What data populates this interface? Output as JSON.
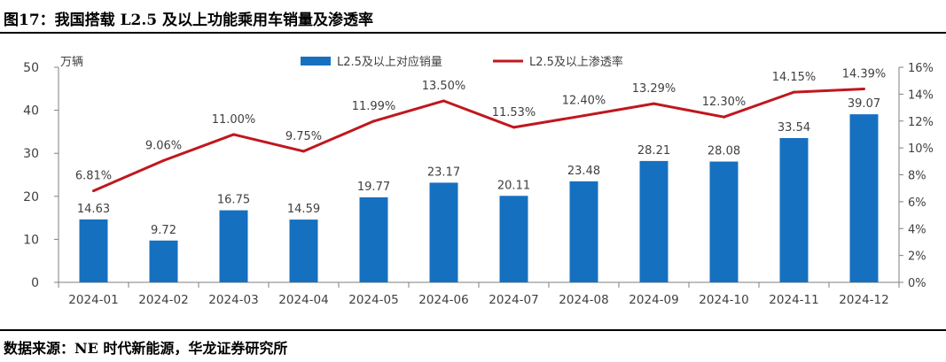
{
  "figure": {
    "title": "图17：我国搭载 L2.5 及以上功能乘用车销量及渗透率",
    "source": "数据来源：NE 时代新能源，华龙证券研究所"
  },
  "colors": {
    "bar": "#1670C0",
    "line": "#C0171E",
    "axis": "#7f7f7f",
    "text": "#404040"
  },
  "chart_data": {
    "type": "bar+line",
    "categories": [
      "2024-01",
      "2024-02",
      "2024-03",
      "2024-04",
      "2024-05",
      "2024-06",
      "2024-07",
      "2024-08",
      "2024-09",
      "2024-10",
      "2024-11",
      "2024-12"
    ],
    "series": [
      {
        "name": "L2.5及以上对应销量",
        "type": "bar",
        "axis": "left",
        "values": [
          14.63,
          9.72,
          16.75,
          14.59,
          19.77,
          23.17,
          20.11,
          23.48,
          28.21,
          28.08,
          33.54,
          39.07
        ],
        "labels": [
          "14.63",
          "9.72",
          "16.75",
          "14.59",
          "19.77",
          "23.17",
          "20.11",
          "23.48",
          "28.21",
          "28.08",
          "33.54",
          "39.07"
        ]
      },
      {
        "name": "L2.5及以上渗透率",
        "type": "line",
        "axis": "right",
        "values": [
          6.81,
          9.06,
          11.0,
          9.75,
          11.99,
          13.5,
          11.53,
          12.4,
          13.29,
          12.3,
          14.15,
          14.39
        ],
        "labels": [
          "6.81%",
          "9.06%",
          "11.00%",
          "9.75%",
          "11.99%",
          "13.50%",
          "11.53%",
          "12.40%",
          "13.29%",
          "12.30%",
          "14.15%",
          "14.39%"
        ]
      }
    ],
    "y_left": {
      "unit_label": "万辆",
      "ylim": [
        0,
        50
      ],
      "ticks": [
        "0",
        "10",
        "20",
        "30",
        "40",
        "50"
      ]
    },
    "y_right": {
      "ylim": [
        0,
        16
      ],
      "ticks": [
        "0%",
        "2%",
        "4%",
        "6%",
        "8%",
        "10%",
        "12%",
        "14%",
        "16%"
      ]
    },
    "legend_position": "top-center"
  }
}
